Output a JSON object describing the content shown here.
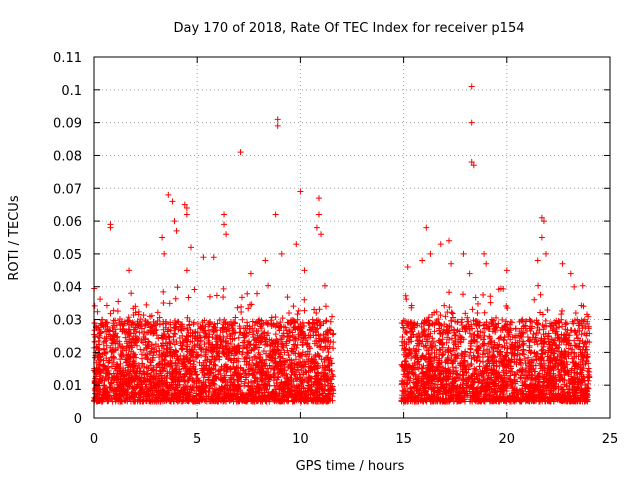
{
  "chart_data": {
    "type": "scatter",
    "title": "Day 170 of 2018, Rate Of TEC Index for receiver p154",
    "xlabel": "GPS time / hours",
    "ylabel": "ROTI / TECUs",
    "xlim": [
      0,
      25
    ],
    "ylim": [
      0,
      0.11
    ],
    "xticks": [
      0,
      5,
      10,
      15,
      20,
      25
    ],
    "xtick_labels": [
      "0",
      "5",
      "10",
      "15",
      "20",
      "25"
    ],
    "yticks": [
      0,
      0.01,
      0.02,
      0.03,
      0.04,
      0.05,
      0.06,
      0.07,
      0.08,
      0.09,
      0.1,
      0.11
    ],
    "ytick_labels": [
      "0",
      "0.01",
      "0.02",
      "0.03",
      "0.04",
      "0.05",
      "0.06",
      "0.07",
      "0.08",
      "0.09",
      "0.1",
      "0.11"
    ],
    "grid": true,
    "marker": "+",
    "color": "#ff0000",
    "series": [
      {
        "name": "ROTI",
        "segments": [
          [
            0.0,
            11.6
          ],
          [
            14.9,
            24.0
          ]
        ],
        "dense_cloud": {
          "typical_min": 0.005,
          "typical_max": 0.03
        },
        "points": [
          {
            "x": 0.8,
            "y": 0.059
          },
          {
            "x": 0.8,
            "y": 0.058
          },
          {
            "x": 1.7,
            "y": 0.045
          },
          {
            "x": 1.8,
            "y": 0.038
          },
          {
            "x": 3.3,
            "y": 0.055
          },
          {
            "x": 3.4,
            "y": 0.05
          },
          {
            "x": 3.6,
            "y": 0.068
          },
          {
            "x": 3.8,
            "y": 0.066
          },
          {
            "x": 3.9,
            "y": 0.06
          },
          {
            "x": 4.0,
            "y": 0.057
          },
          {
            "x": 4.4,
            "y": 0.065
          },
          {
            "x": 4.5,
            "y": 0.064
          },
          {
            "x": 4.5,
            "y": 0.062
          },
          {
            "x": 4.7,
            "y": 0.052
          },
          {
            "x": 4.5,
            "y": 0.045
          },
          {
            "x": 5.3,
            "y": 0.049
          },
          {
            "x": 5.8,
            "y": 0.049
          },
          {
            "x": 6.3,
            "y": 0.062
          },
          {
            "x": 6.3,
            "y": 0.059
          },
          {
            "x": 6.4,
            "y": 0.056
          },
          {
            "x": 7.1,
            "y": 0.081
          },
          {
            "x": 7.6,
            "y": 0.044
          },
          {
            "x": 8.3,
            "y": 0.048
          },
          {
            "x": 8.8,
            "y": 0.062
          },
          {
            "x": 8.9,
            "y": 0.091
          },
          {
            "x": 8.9,
            "y": 0.089
          },
          {
            "x": 9.1,
            "y": 0.05
          },
          {
            "x": 9.8,
            "y": 0.053
          },
          {
            "x": 10.0,
            "y": 0.069
          },
          {
            "x": 10.2,
            "y": 0.045
          },
          {
            "x": 10.8,
            "y": 0.058
          },
          {
            "x": 10.9,
            "y": 0.067
          },
          {
            "x": 10.9,
            "y": 0.062
          },
          {
            "x": 11.0,
            "y": 0.056
          },
          {
            "x": 15.2,
            "y": 0.046
          },
          {
            "x": 15.9,
            "y": 0.048
          },
          {
            "x": 16.1,
            "y": 0.058
          },
          {
            "x": 16.3,
            "y": 0.05
          },
          {
            "x": 16.8,
            "y": 0.053
          },
          {
            "x": 17.2,
            "y": 0.054
          },
          {
            "x": 17.3,
            "y": 0.047
          },
          {
            "x": 17.9,
            "y": 0.05
          },
          {
            "x": 18.3,
            "y": 0.101
          },
          {
            "x": 18.3,
            "y": 0.09
          },
          {
            "x": 18.3,
            "y": 0.078
          },
          {
            "x": 18.4,
            "y": 0.077
          },
          {
            "x": 18.2,
            "y": 0.044
          },
          {
            "x": 18.9,
            "y": 0.05
          },
          {
            "x": 19.0,
            "y": 0.047
          },
          {
            "x": 20.0,
            "y": 0.045
          },
          {
            "x": 21.5,
            "y": 0.048
          },
          {
            "x": 21.7,
            "y": 0.061
          },
          {
            "x": 21.8,
            "y": 0.06
          },
          {
            "x": 21.7,
            "y": 0.055
          },
          {
            "x": 21.9,
            "y": 0.05
          },
          {
            "x": 22.7,
            "y": 0.047
          },
          {
            "x": 23.1,
            "y": 0.044
          }
        ]
      }
    ]
  }
}
